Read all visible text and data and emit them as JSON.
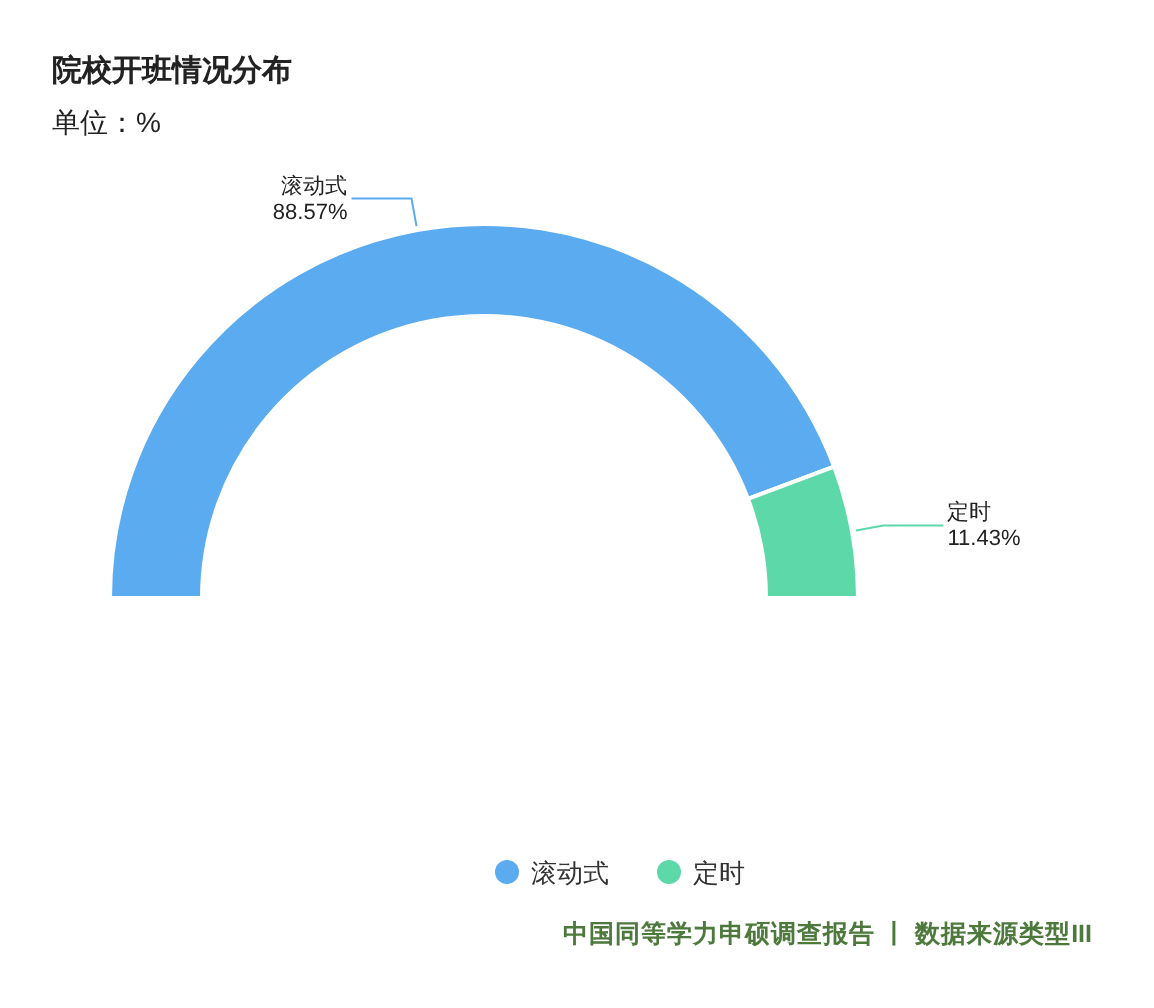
{
  "chart_data": {
    "type": "donut",
    "title": "院校开班情况分布",
    "subtitle": "单位：%",
    "categories": [
      "滚动式",
      "定时"
    ],
    "values": [
      88.57,
      11.43
    ],
    "colors": [
      "#5aabf0",
      "#5dd8a8"
    ],
    "value_labels": [
      "88.57%",
      "11.43%"
    ],
    "legend": "bottom",
    "annotations": [
      "中国同等学力申硕调查报告 丨 数据来源类型III"
    ]
  }
}
